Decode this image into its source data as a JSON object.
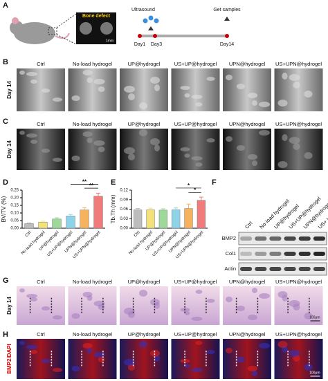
{
  "panel_labels": [
    "A",
    "B",
    "C",
    "D",
    "E",
    "F",
    "G",
    "H"
  ],
  "panel_a": {
    "inset_label": "Bone defect",
    "scale": "1mm",
    "ultrasound": "Ultrasound",
    "get_samples": "Get samples",
    "days": [
      "Day1",
      "Day3",
      "Day14"
    ]
  },
  "groups": [
    "Ctrl",
    "No-load hydrogel",
    "UP@hydrogel",
    "US+UP@hydrogel",
    "UPN@hydrogel",
    "US+UPN@hydrogel"
  ],
  "row_label": "Day 14",
  "panel_h_stain": "BMP2/DAPI",
  "scale_bar": "100μm",
  "panel_f": {
    "lanes": [
      "Ctrl",
      "No-load hydrogel",
      "UP@hydrogel",
      "US+UP@hydrogel",
      "UPN@hydrogel",
      "US+ UPN@hydrogel"
    ],
    "bands": [
      "BMP2",
      "Col1",
      "Actin"
    ]
  },
  "chart_data": [
    {
      "type": "bar",
      "y_label": "BV/TV (%)",
      "categories": [
        "Ctrl",
        "No-load hydrogel",
        "UP@hydrogel",
        "US+UP@hydrogel",
        "UPN@hydrogel",
        "US+UPN@hydrogel"
      ],
      "values": [
        0.03,
        0.04,
        0.06,
        0.08,
        0.12,
        0.21
      ],
      "errors": [
        0.005,
        0.006,
        0.008,
        0.01,
        0.015,
        0.02
      ],
      "colors": [
        "#bdbdbd",
        "#f3e27a",
        "#9ed99a",
        "#8fd3e8",
        "#f5b25f",
        "#f07b7b"
      ],
      "ylim": [
        0,
        0.25
      ],
      "yticks": [
        {
          "value": 0,
          "label": "0.00"
        },
        {
          "value": 0.05,
          "label": "0.05"
        },
        {
          "value": 0.1,
          "label": "0.10"
        },
        {
          "value": 0.15,
          "label": "0.15"
        },
        {
          "value": 0.2,
          "label": "0.20"
        },
        {
          "value": 0.25,
          "label": "0.25"
        }
      ],
      "annotations": [
        "**",
        "**"
      ]
    },
    {
      "type": "bar",
      "y_label": "Tb.Th (mm)",
      "categories": [
        "Ctrl",
        "No-load hydrogel",
        "UP@hydrogel",
        "US+UP@hydrogel",
        "UPN@hydrogel",
        "US+UPN@hydrogel"
      ],
      "values": [
        0.058,
        0.058,
        0.057,
        0.058,
        0.062,
        0.088
      ],
      "errors": [
        0.004,
        0.005,
        0.004,
        0.006,
        0.014,
        0.01
      ],
      "colors": [
        "#bdbdbd",
        "#f3e27a",
        "#9ed99a",
        "#8fd3e8",
        "#f5b25f",
        "#f07b7b"
      ],
      "ylim": [
        0,
        0.12
      ],
      "yticks": [
        {
          "value": 0,
          "label": "0.00"
        },
        {
          "value": 0.03,
          "label": "0.03"
        },
        {
          "value": 0.06,
          "label": "0.06"
        },
        {
          "value": 0.09,
          "label": "0.09"
        },
        {
          "value": 0.12,
          "label": "0.12"
        }
      ],
      "annotations": [
        "*",
        "*"
      ]
    }
  ]
}
